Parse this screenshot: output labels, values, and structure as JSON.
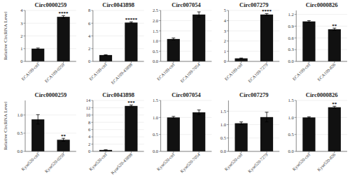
{
  "chart_data": [
    {
      "type": "bar",
      "title": "Circ0000259",
      "categories": [
        "ECA109-ctrl",
        "ECA109-0259"
      ],
      "values": [
        1.0,
        3.5
      ],
      "errors": [
        0.05,
        0.1
      ],
      "annotations": [
        null,
        "****"
      ],
      "color": "#111111",
      "y_label": "Relative CircRNA Level",
      "ylim": [
        0,
        4
      ],
      "yticks": [
        0,
        1,
        2,
        3,
        4
      ]
    },
    {
      "type": "bar",
      "title": "Circ0043898",
      "categories": [
        "ECA109-ctrl",
        "ECA109-43898"
      ],
      "values": [
        1.0,
        6.1
      ],
      "errors": [
        0.05,
        0.12
      ],
      "annotations": [
        null,
        "*****"
      ],
      "color": "#111111",
      "ylim": [
        0,
        8
      ],
      "yticks": [
        0,
        2,
        4,
        6,
        8
      ]
    },
    {
      "type": "bar",
      "title": "Circ007054",
      "categories": [
        "ECA109-ctrl",
        "ECA109-7054"
      ],
      "values": [
        1.1,
        2.3
      ],
      "errors": [
        0.05,
        0.13
      ],
      "color": "#111111",
      "ylim": [
        0.0,
        2.5
      ],
      "yticks": [
        {
          "value": 0.0,
          "label": "0.0"
        },
        0.5,
        {
          "value": 1.0,
          "label": "1.0"
        },
        1.5,
        {
          "value": 2.0,
          "label": "2.0"
        },
        2.5
      ]
    },
    {
      "type": "bar",
      "title": "Circ007279",
      "categories": [
        "ECA109-ctrl",
        "ECA109-7279"
      ],
      "values": [
        0.3,
        4.6
      ],
      "errors": [
        0.03,
        0.1
      ],
      "annotations": [
        null,
        "****"
      ],
      "color": "#111111",
      "ylim": [
        0,
        5
      ],
      "yticks": [
        0,
        1,
        2,
        3,
        4,
        5
      ]
    },
    {
      "type": "bar",
      "title": "Circ0000826",
      "categories": [
        "ECA109-ctrl",
        "ECA109-826"
      ],
      "values": [
        1.02,
        0.82
      ],
      "errors": [
        0.02,
        0.03
      ],
      "annotations": [
        null,
        "**"
      ],
      "color": "#111111",
      "ylim": [
        0.0,
        1.3
      ],
      "yticks": [
        {
          "value": 0.0,
          "label": "0.0"
        },
        0.3,
        0.6,
        0.9,
        1.2
      ]
    },
    {
      "type": "bar",
      "title": "Circ0000259",
      "categories": [
        "Kyse520-ctrl",
        "Kyse520-0259"
      ],
      "values": [
        0.88,
        0.32
      ],
      "errors": [
        0.13,
        0.04
      ],
      "annotations": [
        null,
        "**"
      ],
      "color": "#111111",
      "y_label": "Relative CircRNA Level",
      "ylim": [
        0,
        1.4
      ],
      "yticks": [
        {
          "value": 0.0,
          "label": "0.0"
        },
        0.5,
        {
          "value": 1.0,
          "label": "1.0"
        }
      ]
    },
    {
      "type": "bar",
      "title": "Circ0043898",
      "categories": [
        "Kyse520-ctrl",
        "Kyse520-43898"
      ],
      "values": [
        0.4,
        12.5
      ],
      "errors": [
        0.04,
        0.25
      ],
      "annotations": [
        null,
        "***"
      ],
      "color": "#111111",
      "ylim": [
        0,
        14
      ],
      "yticks": [
        0,
        2,
        4,
        6,
        8,
        10,
        12,
        14
      ]
    },
    {
      "type": "bar",
      "title": "Circ007054",
      "categories": [
        "Kyse520-ctrl",
        "Kyse520-7054"
      ],
      "values": [
        1.0,
        1.15
      ],
      "errors": [
        0.03,
        0.07
      ],
      "color": "#111111",
      "ylim": [
        0.0,
        1.5
      ],
      "yticks": [
        {
          "value": 0.0,
          "label": "0.0"
        },
        0.5,
        {
          "value": 1.0,
          "label": "1.0"
        },
        1.5
      ]
    },
    {
      "type": "bar",
      "title": "Circ007279",
      "categories": [
        "Kyse520-ctrl",
        "Kyse520-7279"
      ],
      "values": [
        1.05,
        1.28
      ],
      "errors": [
        0.05,
        0.18
      ],
      "color": "#111111",
      "ylim": [
        0,
        1.9
      ],
      "yticks": [
        {
          "value": 0.0,
          "label": "0.0"
        },
        0.5,
        {
          "value": 1.0,
          "label": "1.0"
        },
        1.5
      ]
    },
    {
      "type": "bar",
      "title": "Circ0000826",
      "categories": [
        "Kyse520-ctrl",
        "Kyse520-826"
      ],
      "values": [
        1.0,
        1.3
      ],
      "errors": [
        0.02,
        0.03
      ],
      "annotations": [
        null,
        "**"
      ],
      "color": "#111111",
      "ylim": [
        0.0,
        1.5
      ],
      "yticks": [
        {
          "value": 0.0,
          "label": "0.0"
        },
        0.5,
        {
          "value": 1.0,
          "label": "1.0"
        },
        1.5
      ]
    }
  ]
}
